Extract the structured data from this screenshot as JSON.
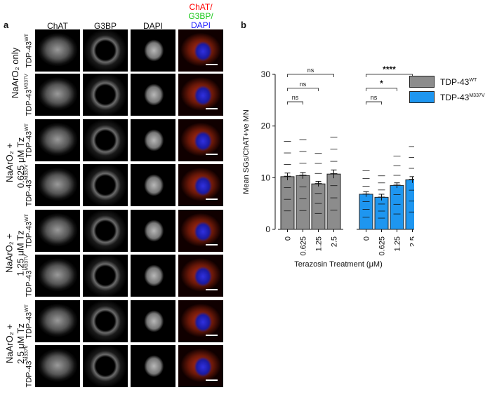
{
  "panel_a": {
    "letter": "a",
    "columns": [
      "ChAT",
      "G3BP",
      "DAPI"
    ],
    "merge_header": {
      "line1": "ChAT/",
      "line2": "G3BP/",
      "line3": "DAPI",
      "colors": {
        "chat": "#ff0000",
        "g3bp": "#19c819",
        "dapi": "#1a1aff"
      }
    },
    "conditions": [
      {
        "line1": "NaArO₂ only",
        "line2": ""
      },
      {
        "line1": "NaArO₂ +",
        "line2": "0.625 μM Tz"
      },
      {
        "line1": "NaArO₂ +",
        "line2": "1.25 μM Tz"
      },
      {
        "line1": "NaArO₂ +",
        "line2": "2.5 μM Tz"
      }
    ],
    "genotypes": [
      {
        "base": "TDP-43",
        "sup": "WT"
      },
      {
        "base": "TDP-43",
        "sup": "M337V"
      }
    ]
  },
  "panel_b": {
    "letter": "b"
  },
  "chart_data": {
    "type": "bar",
    "ylabel": "Mean SGs/ChAT+ve MN",
    "xlabel": "Terazosin Treatment (μM)",
    "ylim": [
      0,
      30
    ],
    "yticks": [
      0,
      10,
      20,
      30
    ],
    "categories": [
      "0",
      "0.625",
      "1.25",
      "2.5"
    ],
    "series": [
      {
        "name": "TDP-43",
        "name_sup": "WT",
        "color": "#8c8c8c",
        "values": [
          10.2,
          10.4,
          8.8,
          10.7
        ],
        "errors": [
          0.7,
          0.6,
          0.5,
          0.8
        ]
      },
      {
        "name": "TDP-43",
        "name_sup": "M337V",
        "color": "#1e96f0",
        "values": [
          6.8,
          6.2,
          8.5,
          9.6
        ],
        "errors": [
          0.5,
          0.6,
          0.5,
          0.6
        ]
      }
    ],
    "significance": [
      {
        "series": 0,
        "from": 0,
        "to": 3,
        "label": "ns"
      },
      {
        "series": 0,
        "from": 0,
        "to": 2,
        "label": "ns"
      },
      {
        "series": 0,
        "from": 0,
        "to": 1,
        "label": "ns"
      },
      {
        "series": 1,
        "from": 0,
        "to": 3,
        "label": "****"
      },
      {
        "series": 1,
        "from": 0,
        "to": 2,
        "label": "*"
      },
      {
        "series": 1,
        "from": 0,
        "to": 1,
        "label": "ns"
      }
    ]
  }
}
